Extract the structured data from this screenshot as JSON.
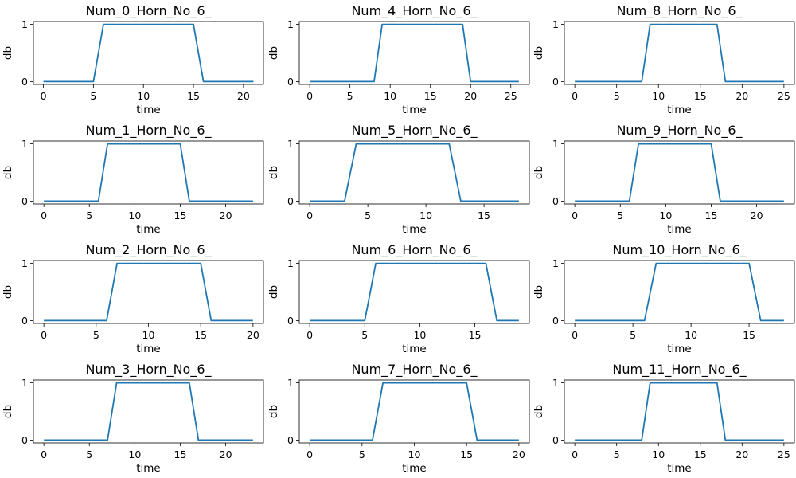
{
  "chart_data": [
    {
      "type": "line",
      "title": "Num_0_Horn_No_6_",
      "xlabel": "time",
      "ylabel": "db",
      "xlim": [
        -1,
        22
      ],
      "ylim": [
        -0.05,
        1.05
      ],
      "xticks": [
        0,
        5,
        10,
        15,
        20
      ],
      "yticks": [
        0,
        1
      ],
      "x": [
        0,
        1,
        2,
        3,
        4,
        5,
        6,
        7,
        8,
        9,
        10,
        11,
        12,
        13,
        14,
        15,
        16,
        17,
        18,
        19,
        20,
        21
      ],
      "y": [
        0,
        0,
        0,
        0,
        0,
        0,
        1,
        1,
        1,
        1,
        1,
        1,
        1,
        1,
        1,
        1,
        0,
        0,
        0,
        0,
        0,
        0
      ]
    },
    {
      "type": "line",
      "title": "Num_4_Horn_No_6_",
      "xlabel": "time",
      "ylabel": "db",
      "xlim": [
        -1.3,
        27.3
      ],
      "ylim": [
        -0.05,
        1.05
      ],
      "xticks": [
        0,
        5,
        10,
        15,
        20,
        25
      ],
      "yticks": [
        0,
        1
      ],
      "x": [
        0,
        1,
        2,
        3,
        4,
        5,
        6,
        7,
        8,
        9,
        10,
        11,
        12,
        13,
        14,
        15,
        16,
        17,
        18,
        19,
        20,
        21,
        22,
        23,
        24,
        25,
        26
      ],
      "y": [
        0,
        0,
        0,
        0,
        0,
        0,
        0,
        0,
        0,
        1,
        1,
        1,
        1,
        1,
        1,
        1,
        1,
        1,
        1,
        1,
        0,
        0,
        0,
        0,
        0,
        0,
        0
      ]
    },
    {
      "type": "line",
      "title": "Num_8_Horn_No_6_",
      "xlabel": "time",
      "ylabel": "db",
      "xlim": [
        -1.25,
        26.25
      ],
      "ylim": [
        -0.05,
        1.05
      ],
      "xticks": [
        0,
        5,
        10,
        15,
        20,
        25
      ],
      "yticks": [
        0,
        1
      ],
      "x": [
        0,
        1,
        2,
        3,
        4,
        5,
        6,
        7,
        8,
        9,
        10,
        11,
        12,
        13,
        14,
        15,
        16,
        17,
        18,
        19,
        20,
        21,
        22,
        23,
        24,
        25
      ],
      "y": [
        0,
        0,
        0,
        0,
        0,
        0,
        0,
        0,
        0,
        1,
        1,
        1,
        1,
        1,
        1,
        1,
        1,
        1,
        0,
        0,
        0,
        0,
        0,
        0,
        0,
        0
      ]
    },
    {
      "type": "line",
      "title": "Num_1_Horn_No_6_",
      "xlabel": "time",
      "ylabel": "db",
      "xlim": [
        -1.15,
        24.15
      ],
      "ylim": [
        -0.05,
        1.05
      ],
      "xticks": [
        0,
        5,
        10,
        15,
        20
      ],
      "yticks": [
        0,
        1
      ],
      "x": [
        0,
        1,
        2,
        3,
        4,
        5,
        6,
        7,
        8,
        9,
        10,
        11,
        12,
        13,
        14,
        15,
        16,
        17,
        18,
        19,
        20,
        21,
        22,
        23
      ],
      "y": [
        0,
        0,
        0,
        0,
        0,
        0,
        0,
        1,
        1,
        1,
        1,
        1,
        1,
        1,
        1,
        1,
        0,
        0,
        0,
        0,
        0,
        0,
        0,
        0
      ]
    },
    {
      "type": "line",
      "title": "Num_5_Horn_No_6_",
      "xlabel": "time",
      "ylabel": "db",
      "xlim": [
        -0.9,
        18.9
      ],
      "ylim": [
        -0.05,
        1.05
      ],
      "xticks": [
        0,
        5,
        10,
        15
      ],
      "yticks": [
        0,
        1
      ],
      "x": [
        0,
        1,
        2,
        3,
        4,
        5,
        6,
        7,
        8,
        9,
        10,
        11,
        12,
        13,
        14,
        15,
        16,
        17,
        18
      ],
      "y": [
        0,
        0,
        0,
        0,
        1,
        1,
        1,
        1,
        1,
        1,
        1,
        1,
        1,
        0,
        0,
        0,
        0,
        0,
        0
      ]
    },
    {
      "type": "line",
      "title": "Num_9_Horn_No_6_",
      "xlabel": "time",
      "ylabel": "db",
      "xlim": [
        -1.15,
        24.15
      ],
      "ylim": [
        -0.05,
        1.05
      ],
      "xticks": [
        0,
        5,
        10,
        15,
        20
      ],
      "yticks": [
        0,
        1
      ],
      "x": [
        0,
        1,
        2,
        3,
        4,
        5,
        6,
        7,
        8,
        9,
        10,
        11,
        12,
        13,
        14,
        15,
        16,
        17,
        18,
        19,
        20,
        21,
        22,
        23
      ],
      "y": [
        0,
        0,
        0,
        0,
        0,
        0,
        0,
        1,
        1,
        1,
        1,
        1,
        1,
        1,
        1,
        1,
        0,
        0,
        0,
        0,
        0,
        0,
        0,
        0
      ]
    },
    {
      "type": "line",
      "title": "Num_2_Horn_No_6_",
      "xlabel": "time",
      "ylabel": "db",
      "xlim": [
        -1,
        21
      ],
      "ylim": [
        -0.05,
        1.05
      ],
      "xticks": [
        0,
        5,
        10,
        15,
        20
      ],
      "yticks": [
        0,
        1
      ],
      "x": [
        0,
        1,
        2,
        3,
        4,
        5,
        6,
        7,
        8,
        9,
        10,
        11,
        12,
        13,
        14,
        15,
        16,
        17,
        18,
        19,
        20
      ],
      "y": [
        0,
        0,
        0,
        0,
        0,
        0,
        0,
        1,
        1,
        1,
        1,
        1,
        1,
        1,
        1,
        1,
        0,
        0,
        0,
        0,
        0
      ]
    },
    {
      "type": "line",
      "title": "Num_6_Horn_No_6_",
      "xlabel": "time",
      "ylabel": "db",
      "xlim": [
        -0.95,
        19.95
      ],
      "ylim": [
        -0.05,
        1.05
      ],
      "xticks": [
        0,
        5,
        10,
        15
      ],
      "yticks": [
        0,
        1
      ],
      "x": [
        0,
        1,
        2,
        3,
        4,
        5,
        6,
        7,
        8,
        9,
        10,
        11,
        12,
        13,
        14,
        15,
        16,
        17,
        18,
        19
      ],
      "y": [
        0,
        0,
        0,
        0,
        0,
        0,
        1,
        1,
        1,
        1,
        1,
        1,
        1,
        1,
        1,
        1,
        1,
        0,
        0,
        0
      ]
    },
    {
      "type": "line",
      "title": "Num_10_Horn_No_6_",
      "xlabel": "time",
      "ylabel": "db",
      "xlim": [
        -0.9,
        18.9
      ],
      "ylim": [
        -0.05,
        1.05
      ],
      "xticks": [
        0,
        5,
        10,
        15
      ],
      "yticks": [
        0,
        1
      ],
      "x": [
        0,
        1,
        2,
        3,
        4,
        5,
        6,
        7,
        8,
        9,
        10,
        11,
        12,
        13,
        14,
        15,
        16,
        17,
        18
      ],
      "y": [
        0,
        0,
        0,
        0,
        0,
        0,
        0,
        1,
        1,
        1,
        1,
        1,
        1,
        1,
        1,
        1,
        0,
        0,
        0
      ]
    },
    {
      "type": "line",
      "title": "Num_3_Horn_No_6_",
      "xlabel": "time",
      "ylabel": "db",
      "xlim": [
        -1.15,
        24.15
      ],
      "ylim": [
        -0.05,
        1.05
      ],
      "xticks": [
        0,
        5,
        10,
        15,
        20
      ],
      "yticks": [
        0,
        1
      ],
      "x": [
        0,
        1,
        2,
        3,
        4,
        5,
        6,
        7,
        8,
        9,
        10,
        11,
        12,
        13,
        14,
        15,
        16,
        17,
        18,
        19,
        20,
        21,
        22,
        23
      ],
      "y": [
        0,
        0,
        0,
        0,
        0,
        0,
        0,
        0,
        1,
        1,
        1,
        1,
        1,
        1,
        1,
        1,
        1,
        0,
        0,
        0,
        0,
        0,
        0,
        0
      ]
    },
    {
      "type": "line",
      "title": "Num_7_Horn_No_6_",
      "xlabel": "time",
      "ylabel": "db",
      "xlim": [
        -1,
        21
      ],
      "ylim": [
        -0.05,
        1.05
      ],
      "xticks": [
        0,
        5,
        10,
        15,
        20
      ],
      "yticks": [
        0,
        1
      ],
      "x": [
        0,
        1,
        2,
        3,
        4,
        5,
        6,
        7,
        8,
        9,
        10,
        11,
        12,
        13,
        14,
        15,
        16,
        17,
        18,
        19,
        20
      ],
      "y": [
        0,
        0,
        0,
        0,
        0,
        0,
        0,
        1,
        1,
        1,
        1,
        1,
        1,
        1,
        1,
        1,
        0,
        0,
        0,
        0,
        0
      ]
    },
    {
      "type": "line",
      "title": "Num_11_Horn_No_6_",
      "xlabel": "time",
      "ylabel": "db",
      "xlim": [
        -1.25,
        26.25
      ],
      "ylim": [
        -0.05,
        1.05
      ],
      "xticks": [
        0,
        5,
        10,
        15,
        20,
        25
      ],
      "yticks": [
        0,
        1
      ],
      "x": [
        0,
        1,
        2,
        3,
        4,
        5,
        6,
        7,
        8,
        9,
        10,
        11,
        12,
        13,
        14,
        15,
        16,
        17,
        18,
        19,
        20,
        21,
        22,
        23,
        24,
        25
      ],
      "y": [
        0,
        0,
        0,
        0,
        0,
        0,
        0,
        0,
        0,
        1,
        1,
        1,
        1,
        1,
        1,
        1,
        1,
        1,
        0,
        0,
        0,
        0,
        0,
        0,
        0,
        0
      ]
    }
  ],
  "colors": {
    "line": "#1f77b4",
    "axes": "#000000",
    "background": "#ffffff"
  }
}
